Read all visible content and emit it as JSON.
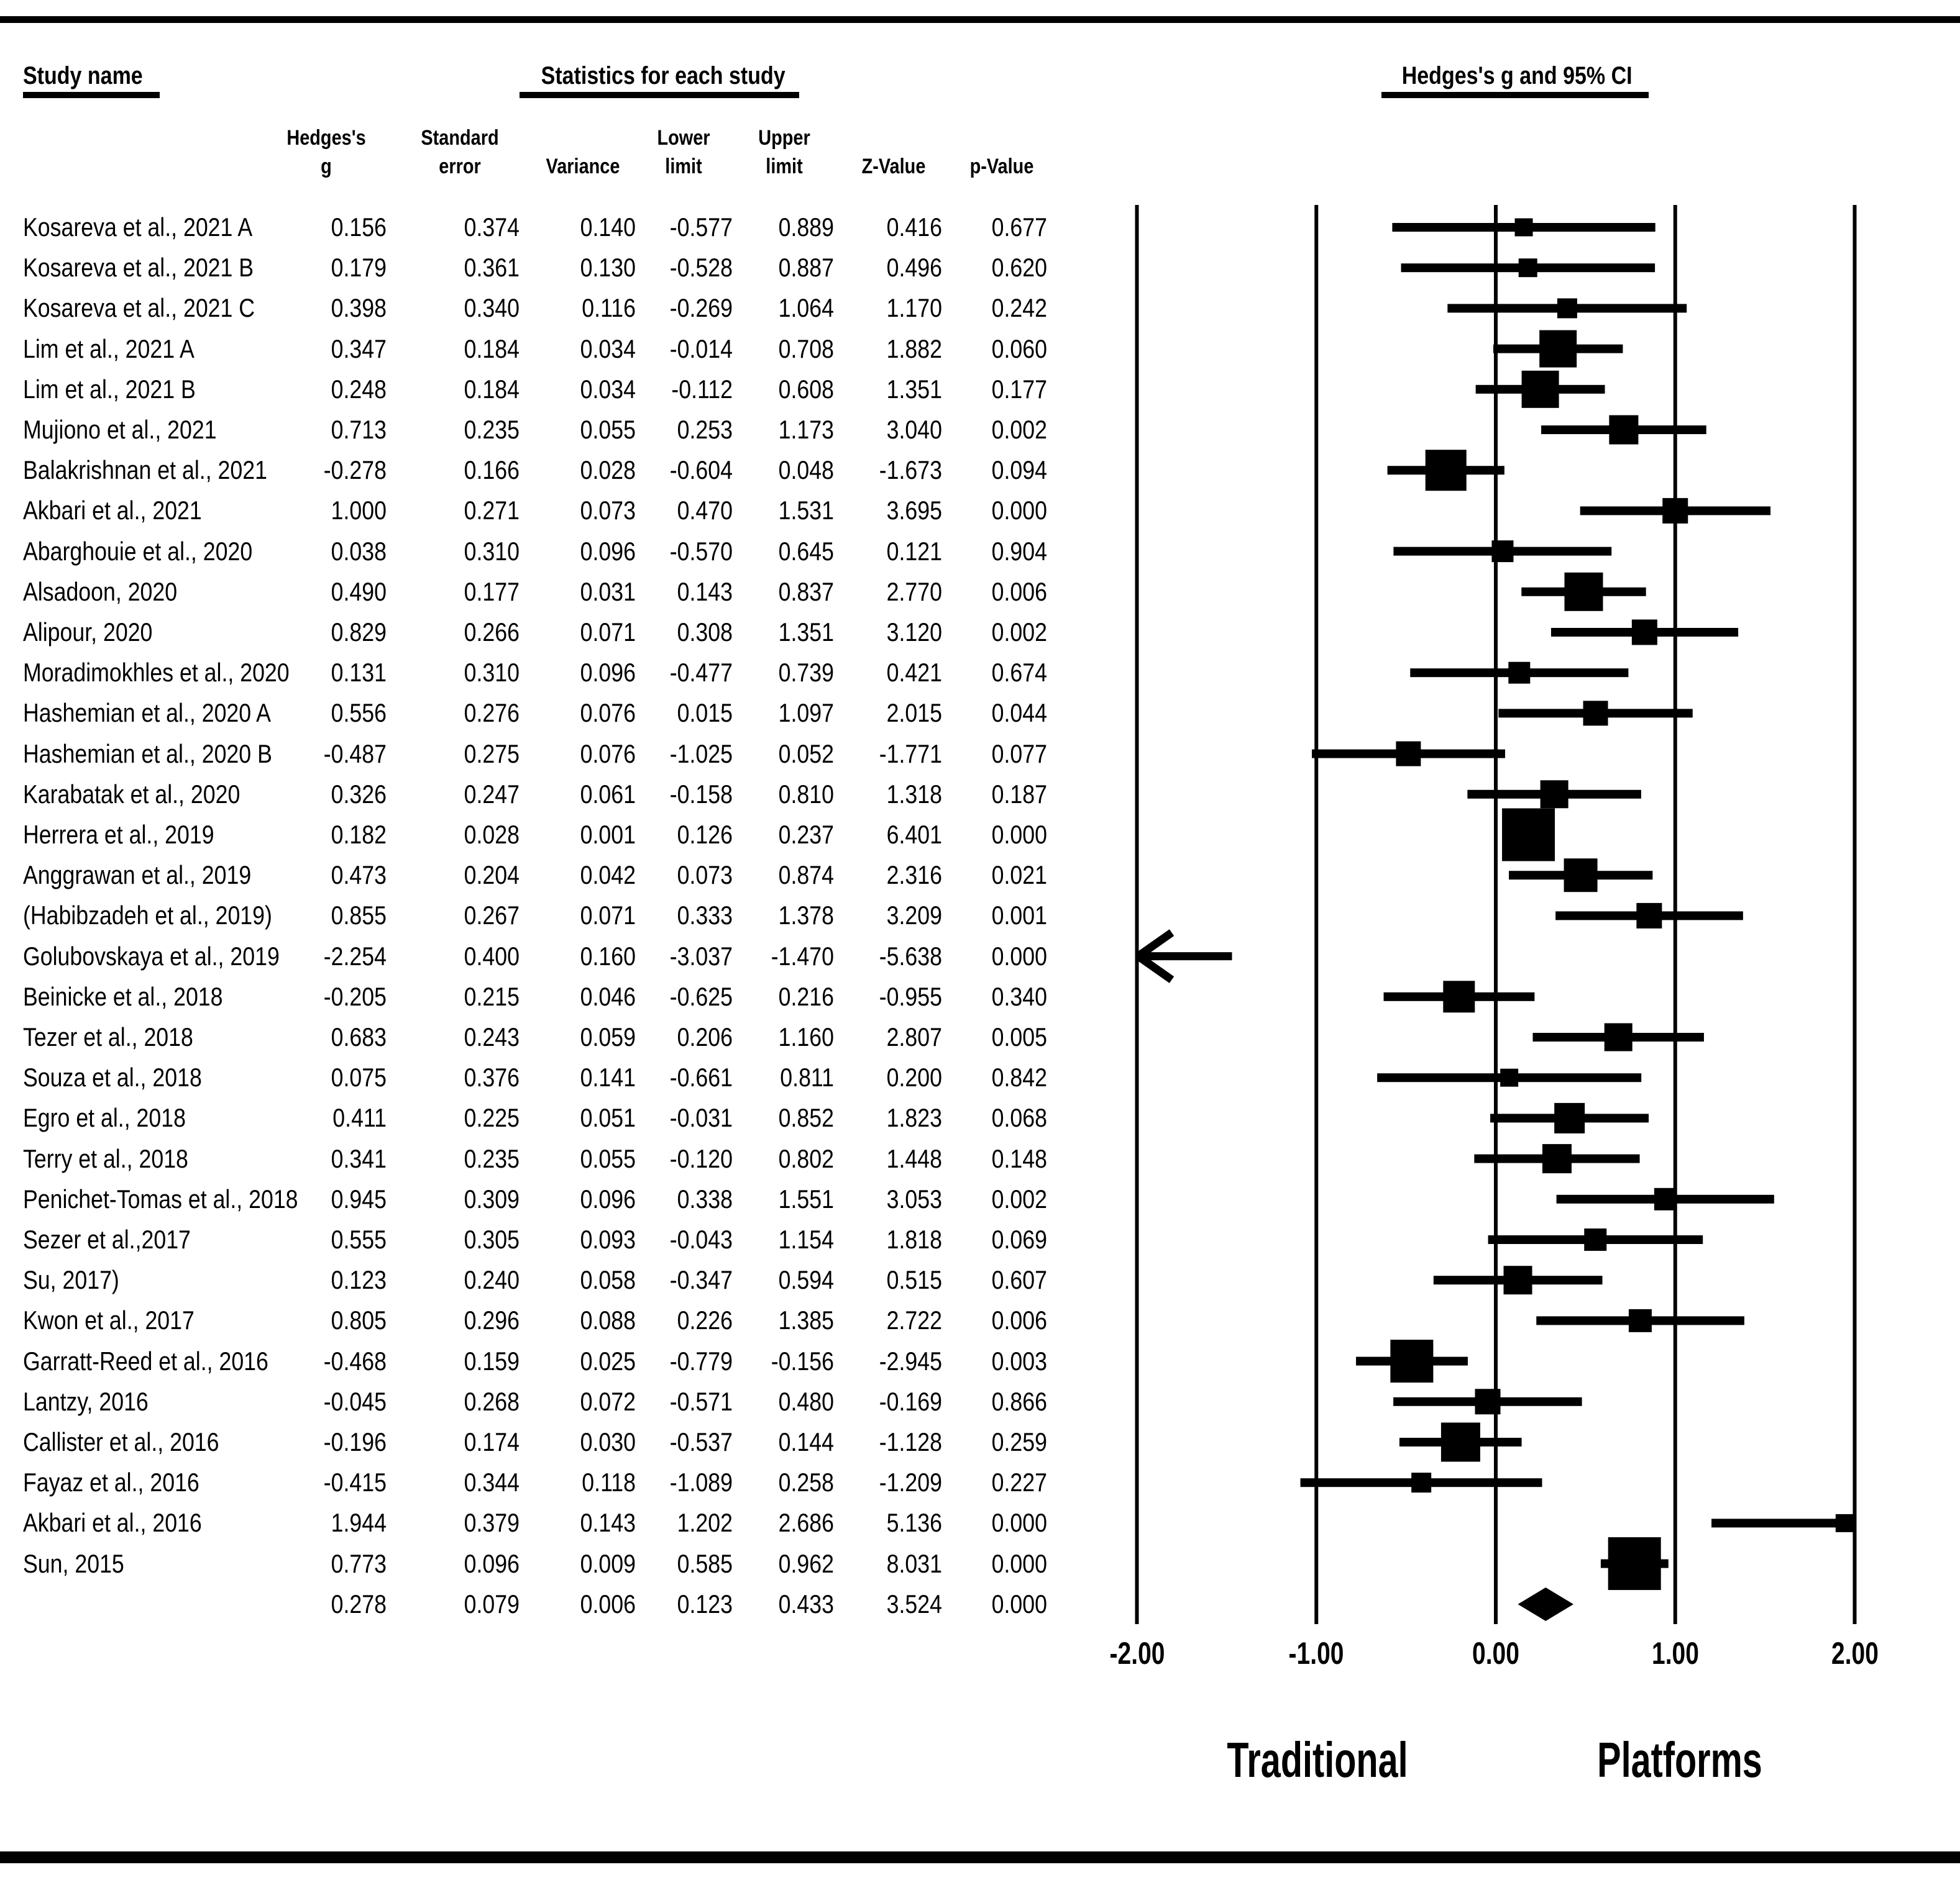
{
  "headers": {
    "study_name": "Study name",
    "statistics": "Statistics for each study",
    "plot": "Hedges's g and 95% CI",
    "columns": [
      {
        "top": "Hedges's",
        "bottom": "g"
      },
      {
        "top": "Standard",
        "bottom": "error"
      },
      {
        "top": "",
        "bottom": "Variance"
      },
      {
        "top": "Lower",
        "bottom": "limit"
      },
      {
        "top": "Upper",
        "bottom": "limit"
      },
      {
        "top": "",
        "bottom": "Z-Value"
      },
      {
        "top": "",
        "bottom": "p-Value"
      }
    ]
  },
  "chart_data": {
    "type": "scatter",
    "subtype": "forest-plot-meta-analysis",
    "title": "Hedges's g and 95% CI",
    "xlabel": "",
    "ylabel": "",
    "xlim": [
      -2.0,
      2.0
    ],
    "grid": "vertical-reference-lines",
    "axis": {
      "tick_labels": [
        "-2.00",
        "-1.00",
        "0.00",
        "1.00",
        "2.00"
      ],
      "tick_values": [
        -2,
        -1,
        0,
        1,
        2
      ]
    },
    "group_labels": {
      "left": "Traditional",
      "right": "Platforms"
    },
    "marker_note": "square size proportional to study weight; left arrow marks CI extending beyond -2.00; diamond marks overall effect",
    "studies": [
      {
        "name": "Kosareva et al., 2021 A",
        "g": "0.156",
        "se": "0.374",
        "variance": "0.140",
        "lower": "-0.577",
        "upper": "0.889",
        "z": "0.416",
        "p": "0.677"
      },
      {
        "name": "Kosareva et al., 2021 B",
        "g": "0.179",
        "se": "0.361",
        "variance": "0.130",
        "lower": "-0.528",
        "upper": "0.887",
        "z": "0.496",
        "p": "0.620"
      },
      {
        "name": "Kosareva et al., 2021 C",
        "g": "0.398",
        "se": "0.340",
        "variance": "0.116",
        "lower": "-0.269",
        "upper": "1.064",
        "z": "1.170",
        "p": "0.242"
      },
      {
        "name": "Lim et al., 2021 A",
        "g": "0.347",
        "se": "0.184",
        "variance": "0.034",
        "lower": "-0.014",
        "upper": "0.708",
        "z": "1.882",
        "p": "0.060"
      },
      {
        "name": "Lim et al., 2021 B",
        "g": "0.248",
        "se": "0.184",
        "variance": "0.034",
        "lower": "-0.112",
        "upper": "0.608",
        "z": "1.351",
        "p": "0.177"
      },
      {
        "name": "Mujiono et al., 2021",
        "g": "0.713",
        "se": "0.235",
        "variance": "0.055",
        "lower": "0.253",
        "upper": "1.173",
        "z": "3.040",
        "p": "0.002"
      },
      {
        "name": "Balakrishnan et al., 2021",
        "g": "-0.278",
        "se": "0.166",
        "variance": "0.028",
        "lower": "-0.604",
        "upper": "0.048",
        "z": "-1.673",
        "p": "0.094"
      },
      {
        "name": "Akbari et al., 2021",
        "g": "1.000",
        "se": "0.271",
        "variance": "0.073",
        "lower": "0.470",
        "upper": "1.531",
        "z": "3.695",
        "p": "0.000"
      },
      {
        "name": "Abarghouie et al., 2020",
        "g": "0.038",
        "se": "0.310",
        "variance": "0.096",
        "lower": "-0.570",
        "upper": "0.645",
        "z": "0.121",
        "p": "0.904"
      },
      {
        "name": "Alsadoon, 2020",
        "g": "0.490",
        "se": "0.177",
        "variance": "0.031",
        "lower": "0.143",
        "upper": "0.837",
        "z": "2.770",
        "p": "0.006"
      },
      {
        "name": "Alipour, 2020",
        "g": "0.829",
        "se": "0.266",
        "variance": "0.071",
        "lower": "0.308",
        "upper": "1.351",
        "z": "3.120",
        "p": "0.002"
      },
      {
        "name": "Moradimokhles et al., 2020",
        "g": "0.131",
        "se": "0.310",
        "variance": "0.096",
        "lower": "-0.477",
        "upper": "0.739",
        "z": "0.421",
        "p": "0.674"
      },
      {
        "name": "Hashemian et al., 2020 A",
        "g": "0.556",
        "se": "0.276",
        "variance": "0.076",
        "lower": "0.015",
        "upper": "1.097",
        "z": "2.015",
        "p": "0.044"
      },
      {
        "name": "Hashemian et al., 2020 B",
        "g": "-0.487",
        "se": "0.275",
        "variance": "0.076",
        "lower": "-1.025",
        "upper": "0.052",
        "z": "-1.771",
        "p": "0.077"
      },
      {
        "name": "Karabatak et al., 2020",
        "g": "0.326",
        "se": "0.247",
        "variance": "0.061",
        "lower": "-0.158",
        "upper": "0.810",
        "z": "1.318",
        "p": "0.187"
      },
      {
        "name": "Herrera et al., 2019",
        "g": "0.182",
        "se": "0.028",
        "variance": "0.001",
        "lower": "0.126",
        "upper": "0.237",
        "z": "6.401",
        "p": "0.000"
      },
      {
        "name": "Anggrawan et al., 2019",
        "g": "0.473",
        "se": "0.204",
        "variance": "0.042",
        "lower": "0.073",
        "upper": "0.874",
        "z": "2.316",
        "p": "0.021"
      },
      {
        "name": "(Habibzadeh et al., 2019)",
        "g": "0.855",
        "se": "0.267",
        "variance": "0.071",
        "lower": "0.333",
        "upper": "1.378",
        "z": "3.209",
        "p": "0.001"
      },
      {
        "name": "Golubovskaya et al., 2019",
        "g": "-2.254",
        "se": "0.400",
        "variance": "0.160",
        "lower": "-3.037",
        "upper": "-1.470",
        "z": "-5.638",
        "p": "0.000"
      },
      {
        "name": "Beinicke et al., 2018",
        "g": "-0.205",
        "se": "0.215",
        "variance": "0.046",
        "lower": "-0.625",
        "upper": "0.216",
        "z": "-0.955",
        "p": "0.340"
      },
      {
        "name": "Tezer et al., 2018",
        "g": "0.683",
        "se": "0.243",
        "variance": "0.059",
        "lower": "0.206",
        "upper": "1.160",
        "z": "2.807",
        "p": "0.005"
      },
      {
        "name": "Souza et al., 2018",
        "g": "0.075",
        "se": "0.376",
        "variance": "0.141",
        "lower": "-0.661",
        "upper": "0.811",
        "z": "0.200",
        "p": "0.842"
      },
      {
        "name": "Egro et al., 2018",
        "g": "0.411",
        "se": "0.225",
        "variance": "0.051",
        "lower": "-0.031",
        "upper": "0.852",
        "z": "1.823",
        "p": "0.068"
      },
      {
        "name": "Terry et al., 2018",
        "g": "0.341",
        "se": "0.235",
        "variance": "0.055",
        "lower": "-0.120",
        "upper": "0.802",
        "z": "1.448",
        "p": "0.148"
      },
      {
        "name": "Penichet-Tomas et al., 2018",
        "g": "0.945",
        "se": "0.309",
        "variance": "0.096",
        "lower": "0.338",
        "upper": "1.551",
        "z": "3.053",
        "p": "0.002"
      },
      {
        "name": "Sezer et al.,2017",
        "g": "0.555",
        "se": "0.305",
        "variance": "0.093",
        "lower": "-0.043",
        "upper": "1.154",
        "z": "1.818",
        "p": "0.069"
      },
      {
        "name": "Su, 2017)",
        "g": "0.123",
        "se": "0.240",
        "variance": "0.058",
        "lower": "-0.347",
        "upper": "0.594",
        "z": "0.515",
        "p": "0.607"
      },
      {
        "name": "Kwon et al., 2017",
        "g": "0.805",
        "se": "0.296",
        "variance": "0.088",
        "lower": "0.226",
        "upper": "1.385",
        "z": "2.722",
        "p": "0.006"
      },
      {
        "name": "Garratt-Reed et al., 2016",
        "g": "-0.468",
        "se": "0.159",
        "variance": "0.025",
        "lower": "-0.779",
        "upper": "-0.156",
        "z": "-2.945",
        "p": "0.003"
      },
      {
        "name": "Lantzy, 2016",
        "g": "-0.045",
        "se": "0.268",
        "variance": "0.072",
        "lower": "-0.571",
        "upper": "0.480",
        "z": "-0.169",
        "p": "0.866"
      },
      {
        "name": "Callister et al., 2016",
        "g": "-0.196",
        "se": "0.174",
        "variance": "0.030",
        "lower": "-0.537",
        "upper": "0.144",
        "z": "-1.128",
        "p": "0.259"
      },
      {
        "name": "Fayaz et al., 2016",
        "g": "-0.415",
        "se": "0.344",
        "variance": "0.118",
        "lower": "-1.089",
        "upper": "0.258",
        "z": "-1.209",
        "p": "0.227"
      },
      {
        "name": "Akbari et al., 2016",
        "g": "1.944",
        "se": "0.379",
        "variance": "0.143",
        "lower": "1.202",
        "upper": "2.686",
        "z": "5.136",
        "p": "0.000"
      },
      {
        "name": "Sun, 2015",
        "g": "0.773",
        "se": "0.096",
        "variance": "0.009",
        "lower": "0.585",
        "upper": "0.962",
        "z": "8.031",
        "p": "0.000"
      }
    ],
    "overall": {
      "name": "",
      "g": "0.278",
      "se": "0.079",
      "variance": "0.006",
      "lower": "0.123",
      "upper": "0.433",
      "z": "3.524",
      "p": "0.000"
    }
  },
  "colors": {
    "ink": "#000000",
    "background": "#ffffff"
  }
}
